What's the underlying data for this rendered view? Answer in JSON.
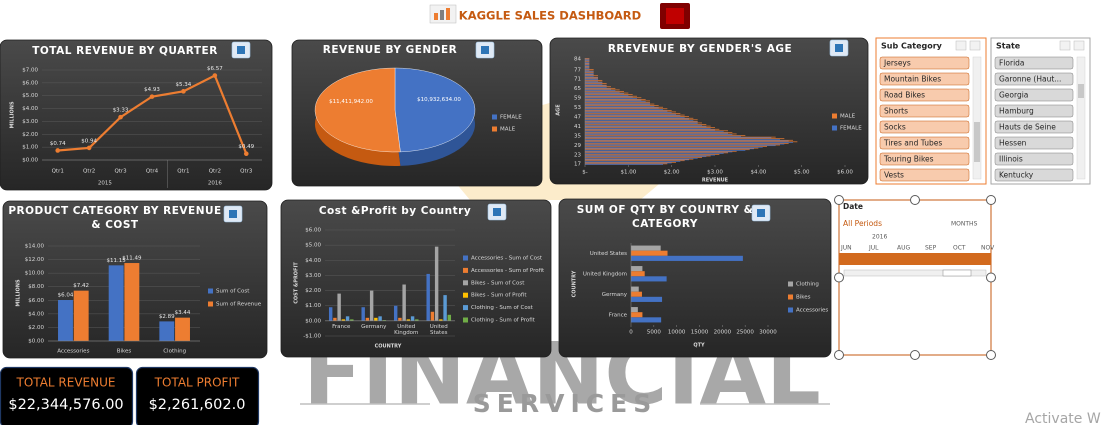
{
  "header": {
    "title": "KAGGLE SALES DASHBOARD"
  },
  "watermark": {
    "line1": "FINANCIAL",
    "line2": "SERVICES"
  },
  "chart_data": [
    {
      "type": "line",
      "title": "TOTAL REVENUE BY QUARTER",
      "y_label": "MILLIONS",
      "categories": [
        "Qtr1",
        "Qtr2",
        "Qtr3",
        "Qtr4",
        "Qtr1",
        "Qtr2",
        "Qtr3"
      ],
      "category_groups": [
        "2015",
        "2015",
        "2015",
        "2015",
        "2016",
        "2016",
        "2016"
      ],
      "values": [
        0.74,
        0.94,
        3.33,
        4.93,
        5.34,
        6.57,
        0.49
      ],
      "value_labels": [
        "$0.74",
        "$0.94",
        "$3.33",
        "$4.93",
        "$5.34",
        "$6.57",
        "$0.49"
      ],
      "color": "#ed7d31",
      "grid": true,
      "ylim": [
        0,
        7
      ],
      "yticks": [
        {
          "value": 0,
          "label": "$0.00"
        },
        {
          "value": 1,
          "label": "$1.00"
        },
        {
          "value": 2,
          "label": "$2.00"
        },
        {
          "value": 3,
          "label": "$3.00"
        },
        {
          "value": 4,
          "label": "$4.00"
        },
        {
          "value": 5,
          "label": "$5.00"
        },
        {
          "value": 6,
          "label": "$6.00"
        },
        {
          "value": 7,
          "label": "$7.00"
        }
      ]
    },
    {
      "type": "pie",
      "title": "REVENUE BY GENDER",
      "categories": [
        "FEMALE",
        "MALE"
      ],
      "values": [
        10932634,
        11411942
      ],
      "value_labels": [
        "$10,932,634.00",
        "$11,411,942.00"
      ],
      "colors": [
        "#4472c4",
        "#ed7d31"
      ]
    },
    {
      "type": "bar",
      "orientation": "horizontal",
      "title": "RREVENUE BY GENDER'S AGE",
      "y_label": "AGE",
      "x_label": "REVENUE",
      "categories": [
        "17",
        null,
        null,
        null,
        null,
        null,
        "23",
        null,
        null,
        null,
        null,
        null,
        "29",
        null,
        null,
        null,
        null,
        null,
        "35",
        null,
        null,
        null,
        null,
        null,
        "41",
        null,
        null,
        null,
        null,
        null,
        "47",
        null,
        null,
        null,
        null,
        null,
        "53",
        null,
        null,
        null,
        null,
        null,
        "59",
        null,
        null,
        null,
        null,
        null,
        "65",
        null,
        null,
        null,
        null,
        null,
        "71",
        null,
        null,
        null,
        null,
        null,
        "77",
        null,
        null,
        null,
        null,
        null,
        null,
        "84"
      ],
      "series": [
        {
          "name": "MALE",
          "color": "#ed7d31",
          "values": [
            1.9,
            2.1,
            2.3,
            2.5,
            2.7,
            2.9,
            3.1,
            3.3,
            3.5,
            3.8,
            4.0,
            4.2,
            4.5,
            4.7,
            4.9,
            4.8,
            4.6,
            4.4,
            3.7,
            3.5,
            3.4,
            3.3,
            3.1,
            3.0,
            2.9,
            2.8,
            2.7,
            2.6,
            2.6,
            2.5,
            2.4,
            2.3,
            2.2,
            2.1,
            2.0,
            1.9,
            1.8,
            1.7,
            1.6,
            1.5,
            1.5,
            1.4,
            1.3,
            1.2,
            1.1,
            1.0,
            0.9,
            0.8,
            0.7,
            0.6,
            0.5,
            0.5,
            0.4,
            0.4,
            0.3,
            0.3,
            0.3,
            0.2,
            0.2,
            0.2,
            0.2,
            0.1,
            0.1,
            0.1,
            0.1,
            0.1,
            0.1,
            0.1
          ]
        },
        {
          "name": "FEMALE",
          "color": "#4472c4",
          "values": [
            1.8,
            2.0,
            2.2,
            2.4,
            2.6,
            2.8,
            3.0,
            3.2,
            3.4,
            3.7,
            3.9,
            4.1,
            4.4,
            4.6,
            4.8,
            4.7,
            4.5,
            4.3,
            3.6,
            3.4,
            3.3,
            3.2,
            3.0,
            2.9,
            2.8,
            2.7,
            2.6,
            2.6,
            2.5,
            2.4,
            2.3,
            2.2,
            2.1,
            2.0,
            1.9,
            1.8,
            1.7,
            1.6,
            1.5,
            1.5,
            1.4,
            1.3,
            1.2,
            1.1,
            1.0,
            0.9,
            0.8,
            0.7,
            0.6,
            0.5,
            0.5,
            0.4,
            0.4,
            0.3,
            0.3,
            0.3,
            0.2,
            0.2,
            0.2,
            0.2,
            0.1,
            0.1,
            0.1,
            0.1,
            0.1,
            0.1,
            0.1,
            0.1
          ]
        }
      ],
      "xlim": [
        0,
        6
      ],
      "xticks": [
        {
          "value": 0,
          "label": "$-"
        },
        {
          "value": 1,
          "label": "$1.00"
        },
        {
          "value": 2,
          "label": "$2.00"
        },
        {
          "value": 3,
          "label": "$3.00"
        },
        {
          "value": 4,
          "label": "$4.00"
        },
        {
          "value": 5,
          "label": "$5.00"
        },
        {
          "value": 6,
          "label": "$6.00"
        }
      ]
    },
    {
      "type": "bar",
      "orientation": "vertical",
      "title": "PRODUCT CATEGORY BY REVENUE & COST",
      "y_label": "MILLIONS",
      "categories": [
        "Accessories",
        "Bikes",
        "Clothing"
      ],
      "series": [
        {
          "name": "Sum of Cost",
          "color": "#4472c4",
          "values": [
            6.04,
            11.15,
            2.89
          ],
          "value_labels": [
            "$6.04",
            "$11.15",
            "$2.89"
          ]
        },
        {
          "name": "Sum of Revenue",
          "color": "#ed7d31",
          "values": [
            7.42,
            11.49,
            3.44
          ],
          "value_labels": [
            "$7.42",
            "$11.49",
            "$3.44"
          ]
        }
      ],
      "grid": true,
      "ylim": [
        0,
        14
      ],
      "yticks": [
        {
          "value": 0,
          "label": "$0.00"
        },
        {
          "value": 2,
          "label": "$2.00"
        },
        {
          "value": 4,
          "label": "$4.00"
        },
        {
          "value": 6,
          "label": "$6.00"
        },
        {
          "value": 8,
          "label": "$8.00"
        },
        {
          "value": 10,
          "label": "$10.00"
        },
        {
          "value": 12,
          "label": "$12.00"
        },
        {
          "value": 14,
          "label": "$14.00"
        }
      ]
    },
    {
      "type": "bar",
      "orientation": "vertical",
      "title": "Cost &Profit by Country",
      "y_label": "COST &PROFIT",
      "x_label": "COUNTRY",
      "categories": [
        "France",
        "Germany",
        "United Kingdom",
        "United States"
      ],
      "series": [
        {
          "name": "Accessories - Sum of Cost",
          "color": "#4472c4",
          "values": [
            0.9,
            0.9,
            1.0,
            3.1
          ]
        },
        {
          "name": "Accessories - Sum of Profit",
          "color": "#ed7d31",
          "values": [
            0.2,
            0.2,
            0.2,
            0.6
          ]
        },
        {
          "name": "Bikes - Sum of Cost",
          "color": "#a5a5a5",
          "values": [
            1.8,
            2.0,
            2.4,
            4.9
          ]
        },
        {
          "name": "Bikes - Sum of Profit",
          "color": "#ffc000",
          "values": [
            0.1,
            0.2,
            0.1,
            0.1
          ]
        },
        {
          "name": "Clothing - Sum of Cost",
          "color": "#5b9bd5",
          "values": [
            0.3,
            0.3,
            0.3,
            1.7
          ]
        },
        {
          "name": "Clothing - Sum of Profit",
          "color": "#70ad47",
          "values": [
            0.1,
            0.05,
            0.1,
            0.4
          ]
        }
      ],
      "grid": true,
      "ylim": [
        -1,
        6
      ],
      "yticks": [
        {
          "value": -1,
          "label": "-$1.00"
        },
        {
          "value": 0,
          "label": "$0.00"
        },
        {
          "value": 1,
          "label": "$1.00"
        },
        {
          "value": 2,
          "label": "$2.00"
        },
        {
          "value": 3,
          "label": "$3.00"
        },
        {
          "value": 4,
          "label": "$4.00"
        },
        {
          "value": 5,
          "label": "$5.00"
        },
        {
          "value": 6,
          "label": "$6.00"
        }
      ]
    },
    {
      "type": "bar",
      "orientation": "horizontal",
      "title": "SUM OF QTY BY COUNTRY & CATEGORY",
      "y_label": "COUNTRY",
      "x_label": "QTY",
      "categories": [
        "France",
        "Germany",
        "United Kingdom",
        "United States"
      ],
      "series": [
        {
          "name": "Clothing",
          "color": "#a5a5a5",
          "values": [
            1500,
            1700,
            2500,
            6500
          ]
        },
        {
          "name": "Bikes",
          "color": "#ed7d31",
          "values": [
            2500,
            2400,
            3000,
            8000
          ]
        },
        {
          "name": "Accessories",
          "color": "#4472c4",
          "values": [
            6600,
            6800,
            7800,
            24500
          ]
        }
      ],
      "xlim": [
        0,
        30000
      ],
      "xticks": [
        0,
        5000,
        10000,
        15000,
        20000,
        25000,
        30000
      ]
    }
  ],
  "slicers": [
    {
      "title": "Sub Category",
      "items": [
        "Jerseys",
        "Mountain Bikes",
        "Road Bikes",
        "Shorts",
        "Socks",
        "Tires and Tubes",
        "Touring Bikes",
        "Vests"
      ]
    },
    {
      "title": "State",
      "items": [
        "Florida",
        "Garonne (Haut...",
        "Georgia",
        "Hamburg",
        "Hauts de Seine",
        "Hessen",
        "Illinois",
        "Kentucky"
      ]
    }
  ],
  "timeline": {
    "title": "Date",
    "period": "All Periods",
    "level": "MONTHS",
    "year": "2016",
    "months": [
      "JUN",
      "JUL",
      "AUG",
      "SEP",
      "OCT",
      "NOV"
    ]
  },
  "kpis": [
    {
      "label": "TOTAL REVENUE",
      "value": "$22,344,576.00"
    },
    {
      "label": "TOTAL PROFIT",
      "value": "$2,261,602.0"
    }
  ],
  "system": {
    "notice": "Activate W"
  }
}
